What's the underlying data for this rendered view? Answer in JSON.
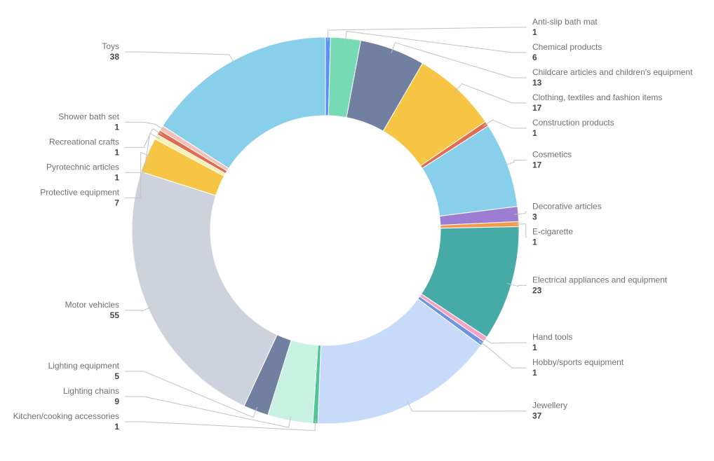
{
  "chart_data": {
    "type": "pie",
    "variant": "donut",
    "title": "",
    "legend": "none",
    "slices": [
      {
        "name": "Anti-slip bath mat",
        "value": 1,
        "color": "#5b8ff9",
        "side": "right"
      },
      {
        "name": "Chemical products",
        "value": 6,
        "color": "#76dbb4",
        "side": "right"
      },
      {
        "name": "Childcare articles and children's equipment",
        "value": 13,
        "color": "#717fa0",
        "side": "right"
      },
      {
        "name": "Clothing, textiles and fashion items",
        "value": 17,
        "color": "#f6c544",
        "side": "right"
      },
      {
        "name": "Construction products",
        "value": 1,
        "color": "#e06d4f",
        "side": "right"
      },
      {
        "name": "Cosmetics",
        "value": 17,
        "color": "#88cfec",
        "side": "right"
      },
      {
        "name": "Decorative articles",
        "value": 3,
        "color": "#9b7dd4",
        "side": "right"
      },
      {
        "name": "E-cigarette",
        "value": 1,
        "color": "#f49a4b",
        "side": "right"
      },
      {
        "name": "Electrical appliances and equipment",
        "value": 23,
        "color": "#46aaa7",
        "side": "right"
      },
      {
        "name": "Hand tools",
        "value": 1,
        "color": "#f5a3c4",
        "side": "right"
      },
      {
        "name": "Hobby/sports equipment",
        "value": 1,
        "color": "#6f94e0",
        "side": "right"
      },
      {
        "name": "Jewellery",
        "value": 37,
        "color": "#c8dafa",
        "side": "right"
      },
      {
        "name": "Kitchen/cooking accessories",
        "value": 1,
        "color": "#4fc496",
        "side": "left"
      },
      {
        "name": "Lighting chains",
        "value": 9,
        "color": "#c7f2e2",
        "side": "left"
      },
      {
        "name": "Lighting equipment",
        "value": 5,
        "color": "#717fa0",
        "side": "left"
      },
      {
        "name": "Motor vehicles",
        "value": 55,
        "color": "#ced2dd",
        "side": "left"
      },
      {
        "name": "Protective equipment",
        "value": 7,
        "color": "#f6c544",
        "side": "left"
      },
      {
        "name": "Pyrotechnic articles",
        "value": 1,
        "color": "#faf0b5",
        "side": "left"
      },
      {
        "name": "Recreational crafts",
        "value": 1,
        "color": "#e06d4f",
        "side": "left"
      },
      {
        "name": "Shower bath set",
        "value": 1,
        "color": "#f4c0b8",
        "side": "left"
      },
      {
        "name": "Toys",
        "value": 38,
        "color": "#88cfec",
        "side": "left"
      }
    ]
  }
}
